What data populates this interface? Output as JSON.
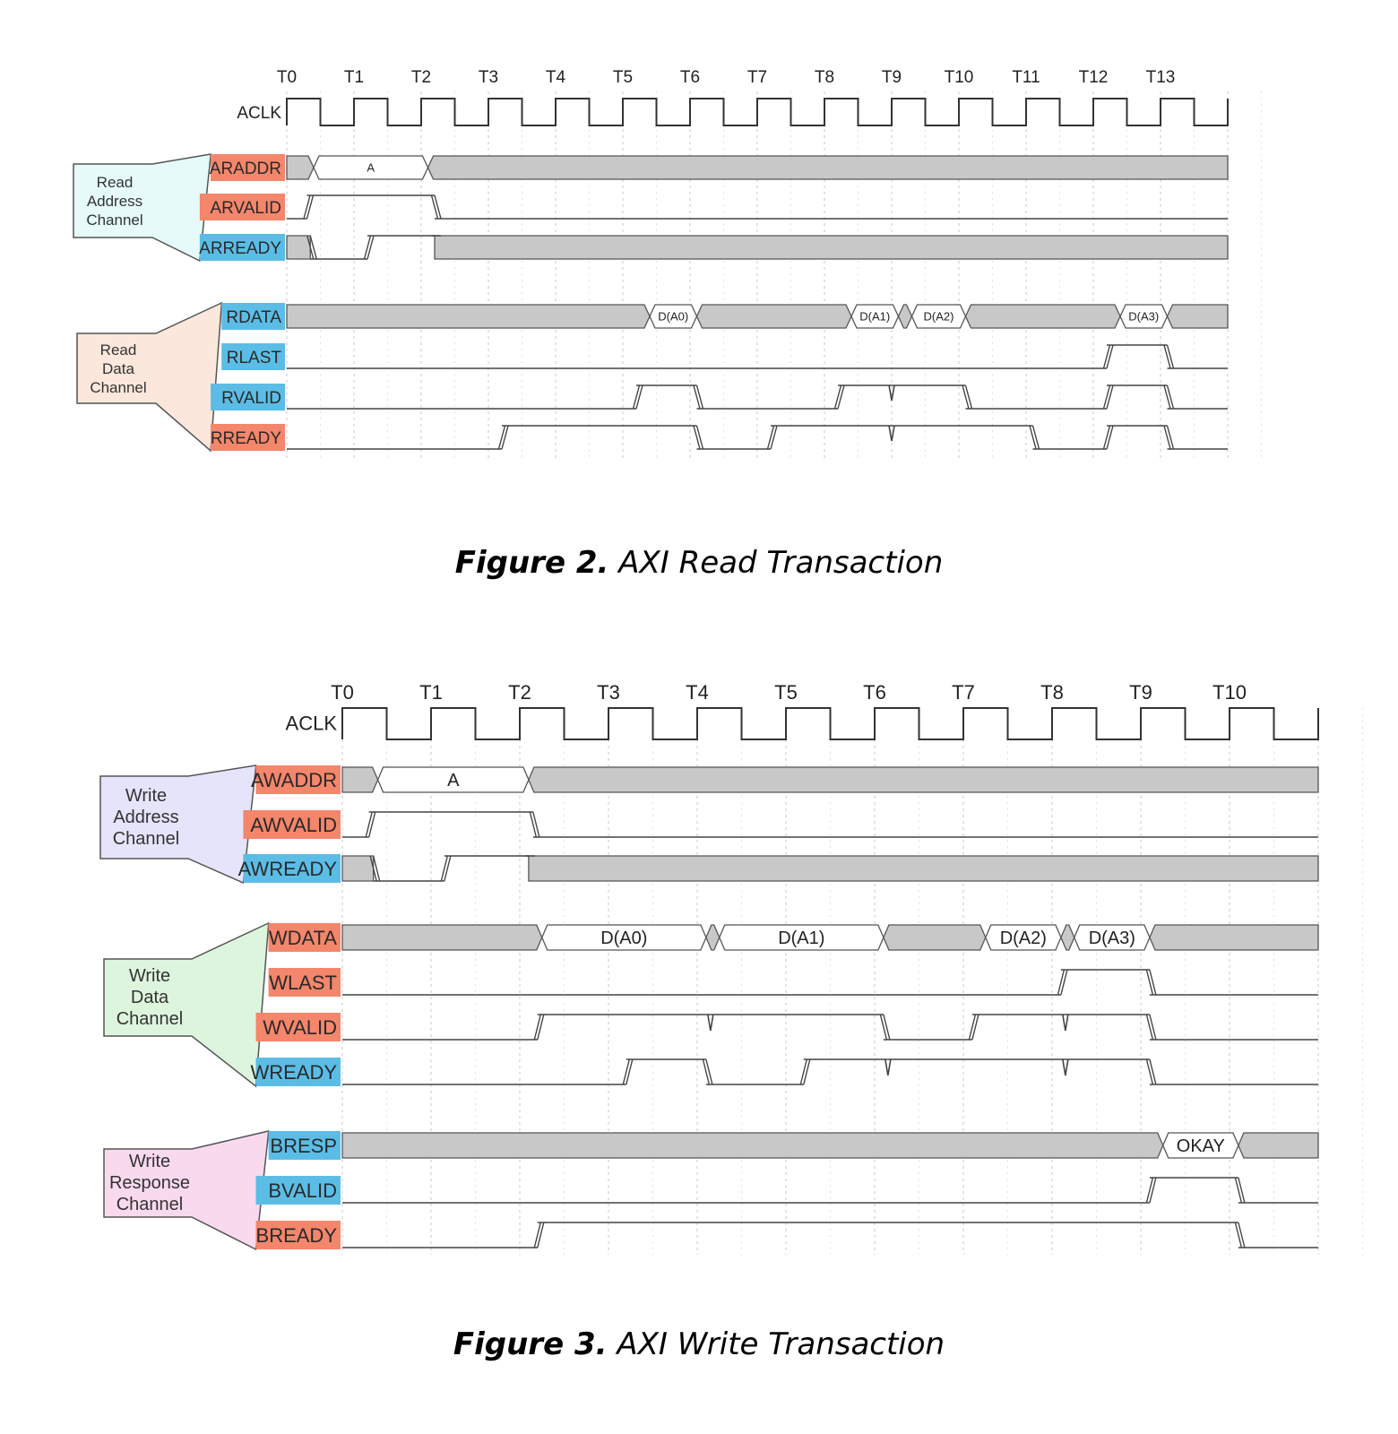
{
  "colors": {
    "orange_label": "#f4866b",
    "blue_label": "#5bbde6",
    "bus_fill": "#c8c8c8",
    "read_addr_group": "#e6fafa",
    "read_data_group": "#fbe7dc",
    "write_addr_group": "#e6e4fb",
    "write_data_group": "#ddf5dd",
    "write_resp_group": "#f8d9ee"
  },
  "figures": [
    {
      "id": "fig2",
      "caption_num": "Figure 2.",
      "caption_text": "AXI Read Transaction",
      "clock_label": "ACLK",
      "ticks": [
        "T0",
        "T1",
        "T2",
        "T3",
        "T4",
        "T5",
        "T6",
        "T7",
        "T8",
        "T9",
        "T10",
        "T11",
        "T12",
        "T13"
      ],
      "groups": [
        {
          "name": "read-address-channel",
          "lines": [
            "Read",
            "Address",
            "Channel"
          ],
          "color": "read_addr_group",
          "signals": [
            0,
            1,
            2
          ]
        },
        {
          "name": "read-data-channel",
          "lines": [
            "Read",
            "Data",
            "Channel"
          ],
          "color": "read_data_group",
          "signals": [
            3,
            4,
            5,
            6
          ]
        }
      ],
      "signals": [
        {
          "name": "ARADDR",
          "label_color": "orange_label",
          "type": "bus",
          "segments": [
            {
              "from": 0,
              "to": 0.4,
              "kind": "fill"
            },
            {
              "from": 0.4,
              "to": 2.1,
              "kind": "data",
              "label": "A"
            },
            {
              "from": 2.1,
              "to": 14.0,
              "kind": "fill"
            }
          ]
        },
        {
          "name": "ARVALID",
          "label_color": "orange_label",
          "type": "wave",
          "levels": [
            [
              0,
              "low"
            ],
            [
              0.3,
              "high"
            ],
            [
              2.2,
              "low"
            ]
          ]
        },
        {
          "name": "ARREADY",
          "label_color": "blue_label",
          "type": "wave",
          "levels": [
            [
              0,
              "x"
            ],
            [
              0.35,
              "low"
            ],
            [
              1.2,
              "high"
            ],
            [
              2.2,
              "x"
            ]
          ]
        },
        {
          "name": "RDATA",
          "label_color": "blue_label",
          "type": "bus",
          "segments": [
            {
              "from": 0,
              "to": 5.4,
              "kind": "fill"
            },
            {
              "from": 5.4,
              "to": 6.1,
              "kind": "data",
              "label": "D(A0)"
            },
            {
              "from": 6.1,
              "to": 8.4,
              "kind": "fill"
            },
            {
              "from": 8.4,
              "to": 9.1,
              "kind": "data",
              "label": "D(A1)"
            },
            {
              "from": 9.1,
              "to": 9.3,
              "kind": "fill"
            },
            {
              "from": 9.3,
              "to": 10.1,
              "kind": "data",
              "label": "D(A2)"
            },
            {
              "from": 10.1,
              "to": 12.4,
              "kind": "fill"
            },
            {
              "from": 12.4,
              "to": 13.1,
              "kind": "data",
              "label": "D(A3)"
            },
            {
              "from": 13.1,
              "to": 14.0,
              "kind": "fill"
            }
          ]
        },
        {
          "name": "RLAST",
          "label_color": "blue_label",
          "type": "wave",
          "levels": [
            [
              0,
              "low"
            ],
            [
              12.2,
              "high"
            ],
            [
              13.1,
              "low"
            ]
          ]
        },
        {
          "name": "RVALID",
          "label_color": "blue_label",
          "type": "wave",
          "levels": [
            [
              0,
              "low"
            ],
            [
              5.2,
              "high"
            ],
            [
              6.1,
              "low"
            ],
            [
              8.2,
              "high"
            ],
            [
              9.0,
              "glitch"
            ],
            [
              10.1,
              "low"
            ],
            [
              12.2,
              "high"
            ],
            [
              13.1,
              "low"
            ]
          ]
        },
        {
          "name": "RREADY",
          "label_color": "orange_label",
          "type": "wave",
          "levels": [
            [
              0,
              "low"
            ],
            [
              3.2,
              "high"
            ],
            [
              6.1,
              "low"
            ],
            [
              7.2,
              "high"
            ],
            [
              9.0,
              "glitch"
            ],
            [
              11.1,
              "low"
            ],
            [
              12.2,
              "high"
            ],
            [
              13.1,
              "low"
            ]
          ]
        }
      ]
    },
    {
      "id": "fig3",
      "caption_num": "Figure 3.",
      "caption_text": "AXI Write Transaction",
      "clock_label": "ACLK",
      "ticks": [
        "T0",
        "T1",
        "T2",
        "T3",
        "T4",
        "T5",
        "T6",
        "T7",
        "T8",
        "T9",
        "T10"
      ],
      "groups": [
        {
          "name": "write-address-channel",
          "lines": [
            "Write",
            "Address",
            "Channel"
          ],
          "color": "write_addr_group",
          "signals": [
            0,
            1,
            2
          ]
        },
        {
          "name": "write-data-channel",
          "lines": [
            "Write",
            "Data",
            "Channel"
          ],
          "color": "write_data_group",
          "signals": [
            3,
            4,
            5,
            6
          ]
        },
        {
          "name": "write-response-channel",
          "lines": [
            "Write",
            "Response",
            "Channel"
          ],
          "color": "write_resp_group",
          "signals": [
            7,
            8,
            9
          ]
        }
      ],
      "signals": [
        {
          "name": "AWADDR",
          "label_color": "orange_label",
          "type": "bus",
          "segments": [
            {
              "from": 0,
              "to": 0.4,
              "kind": "fill"
            },
            {
              "from": 0.4,
              "to": 2.1,
              "kind": "data",
              "label": "A"
            },
            {
              "from": 2.1,
              "to": 11.0,
              "kind": "fill"
            }
          ]
        },
        {
          "name": "AWVALID",
          "label_color": "orange_label",
          "type": "wave",
          "levels": [
            [
              0,
              "low"
            ],
            [
              0.3,
              "high"
            ],
            [
              2.15,
              "low"
            ]
          ]
        },
        {
          "name": "AWREADY",
          "label_color": "blue_label",
          "type": "wave",
          "levels": [
            [
              0,
              "x"
            ],
            [
              0.35,
              "low"
            ],
            [
              1.15,
              "high"
            ],
            [
              2.1,
              "x"
            ]
          ]
        },
        {
          "name": "WDATA",
          "label_color": "orange_label",
          "type": "bus",
          "segments": [
            {
              "from": 0,
              "to": 2.25,
              "kind": "fill"
            },
            {
              "from": 2.25,
              "to": 4.1,
              "kind": "data",
              "label": "D(A0)"
            },
            {
              "from": 4.1,
              "to": 4.25,
              "kind": "fill"
            },
            {
              "from": 4.25,
              "to": 6.1,
              "kind": "data",
              "label": "D(A1)"
            },
            {
              "from": 6.1,
              "to": 7.25,
              "kind": "fill"
            },
            {
              "from": 7.25,
              "to": 8.1,
              "kind": "data",
              "label": "D(A2)"
            },
            {
              "from": 8.1,
              "to": 8.25,
              "kind": "fill"
            },
            {
              "from": 8.25,
              "to": 9.1,
              "kind": "data",
              "label": "D(A3)"
            },
            {
              "from": 9.1,
              "to": 11.0,
              "kind": "fill"
            }
          ]
        },
        {
          "name": "WLAST",
          "label_color": "orange_label",
          "type": "wave",
          "levels": [
            [
              0,
              "low"
            ],
            [
              8.1,
              "high"
            ],
            [
              9.1,
              "low"
            ]
          ]
        },
        {
          "name": "WVALID",
          "label_color": "orange_label",
          "type": "wave",
          "levels": [
            [
              0,
              "low"
            ],
            [
              2.2,
              "high"
            ],
            [
              4.15,
              "glitch"
            ],
            [
              6.1,
              "low"
            ],
            [
              7.1,
              "high"
            ],
            [
              8.15,
              "glitch"
            ],
            [
              9.1,
              "low"
            ]
          ]
        },
        {
          "name": "WREADY",
          "label_color": "blue_label",
          "type": "wave",
          "levels": [
            [
              0,
              "low"
            ],
            [
              3.2,
              "high"
            ],
            [
              4.1,
              "low"
            ],
            [
              5.2,
              "high"
            ],
            [
              6.15,
              "glitch"
            ],
            [
              8.15,
              "glitch"
            ],
            [
              9.1,
              "low"
            ]
          ]
        },
        {
          "name": "BRESP",
          "label_color": "blue_label",
          "type": "bus",
          "segments": [
            {
              "from": 0,
              "to": 9.25,
              "kind": "fill"
            },
            {
              "from": 9.25,
              "to": 10.1,
              "kind": "data",
              "label": "OKAY"
            },
            {
              "from": 10.1,
              "to": 11.0,
              "kind": "fill"
            }
          ]
        },
        {
          "name": "BVALID",
          "label_color": "blue_label",
          "type": "wave",
          "levels": [
            [
              0,
              "low"
            ],
            [
              9.1,
              "high"
            ],
            [
              10.1,
              "low"
            ]
          ]
        },
        {
          "name": "BREADY",
          "label_color": "orange_label",
          "type": "wave",
          "levels": [
            [
              0,
              "low"
            ],
            [
              2.2,
              "high"
            ],
            [
              10.1,
              "low"
            ]
          ]
        }
      ]
    }
  ]
}
